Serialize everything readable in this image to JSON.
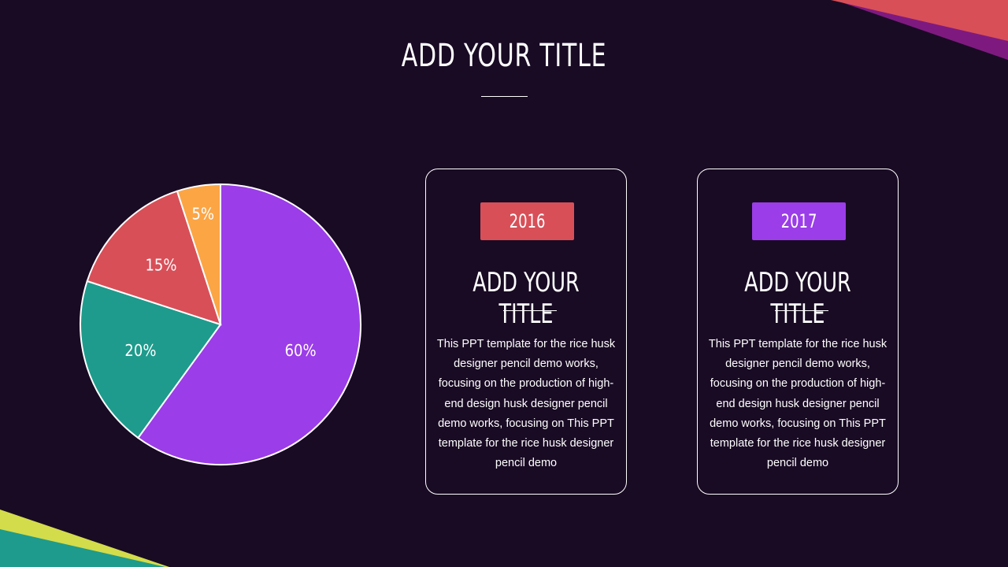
{
  "title": "ADD YOUR TITLE",
  "colors": {
    "background": "#190b24",
    "purple": "#9b3de8",
    "teal": "#1e9b8c",
    "red": "#d84f58",
    "orange": "#fba545",
    "yellow": "#d3dc4a",
    "magenta": "#7e1a7f"
  },
  "chart_data": {
    "type": "pie",
    "values": [
      60,
      20,
      15,
      5
    ],
    "labels": [
      "60%",
      "20%",
      "15%",
      "5%"
    ],
    "colors": [
      "#9b3de8",
      "#1e9b8c",
      "#d84f58",
      "#fba545"
    ]
  },
  "cards": [
    {
      "year": "2016",
      "color": "#d84f58",
      "title": "ADD YOUR TITLE",
      "text": "This PPT template for the rice husk designer pencil demo works, focusing on the production of high-end design husk designer pencil demo works, focusing on This PPT template for the rice husk designer pencil demo"
    },
    {
      "year": "2017",
      "color": "#9b3de8",
      "title": "ADD YOUR TITLE",
      "text": "This PPT template for the rice husk designer pencil demo works, focusing on the production of high-end design husk designer pencil demo works, focusing on This PPT template for the rice husk designer pencil demo"
    }
  ]
}
